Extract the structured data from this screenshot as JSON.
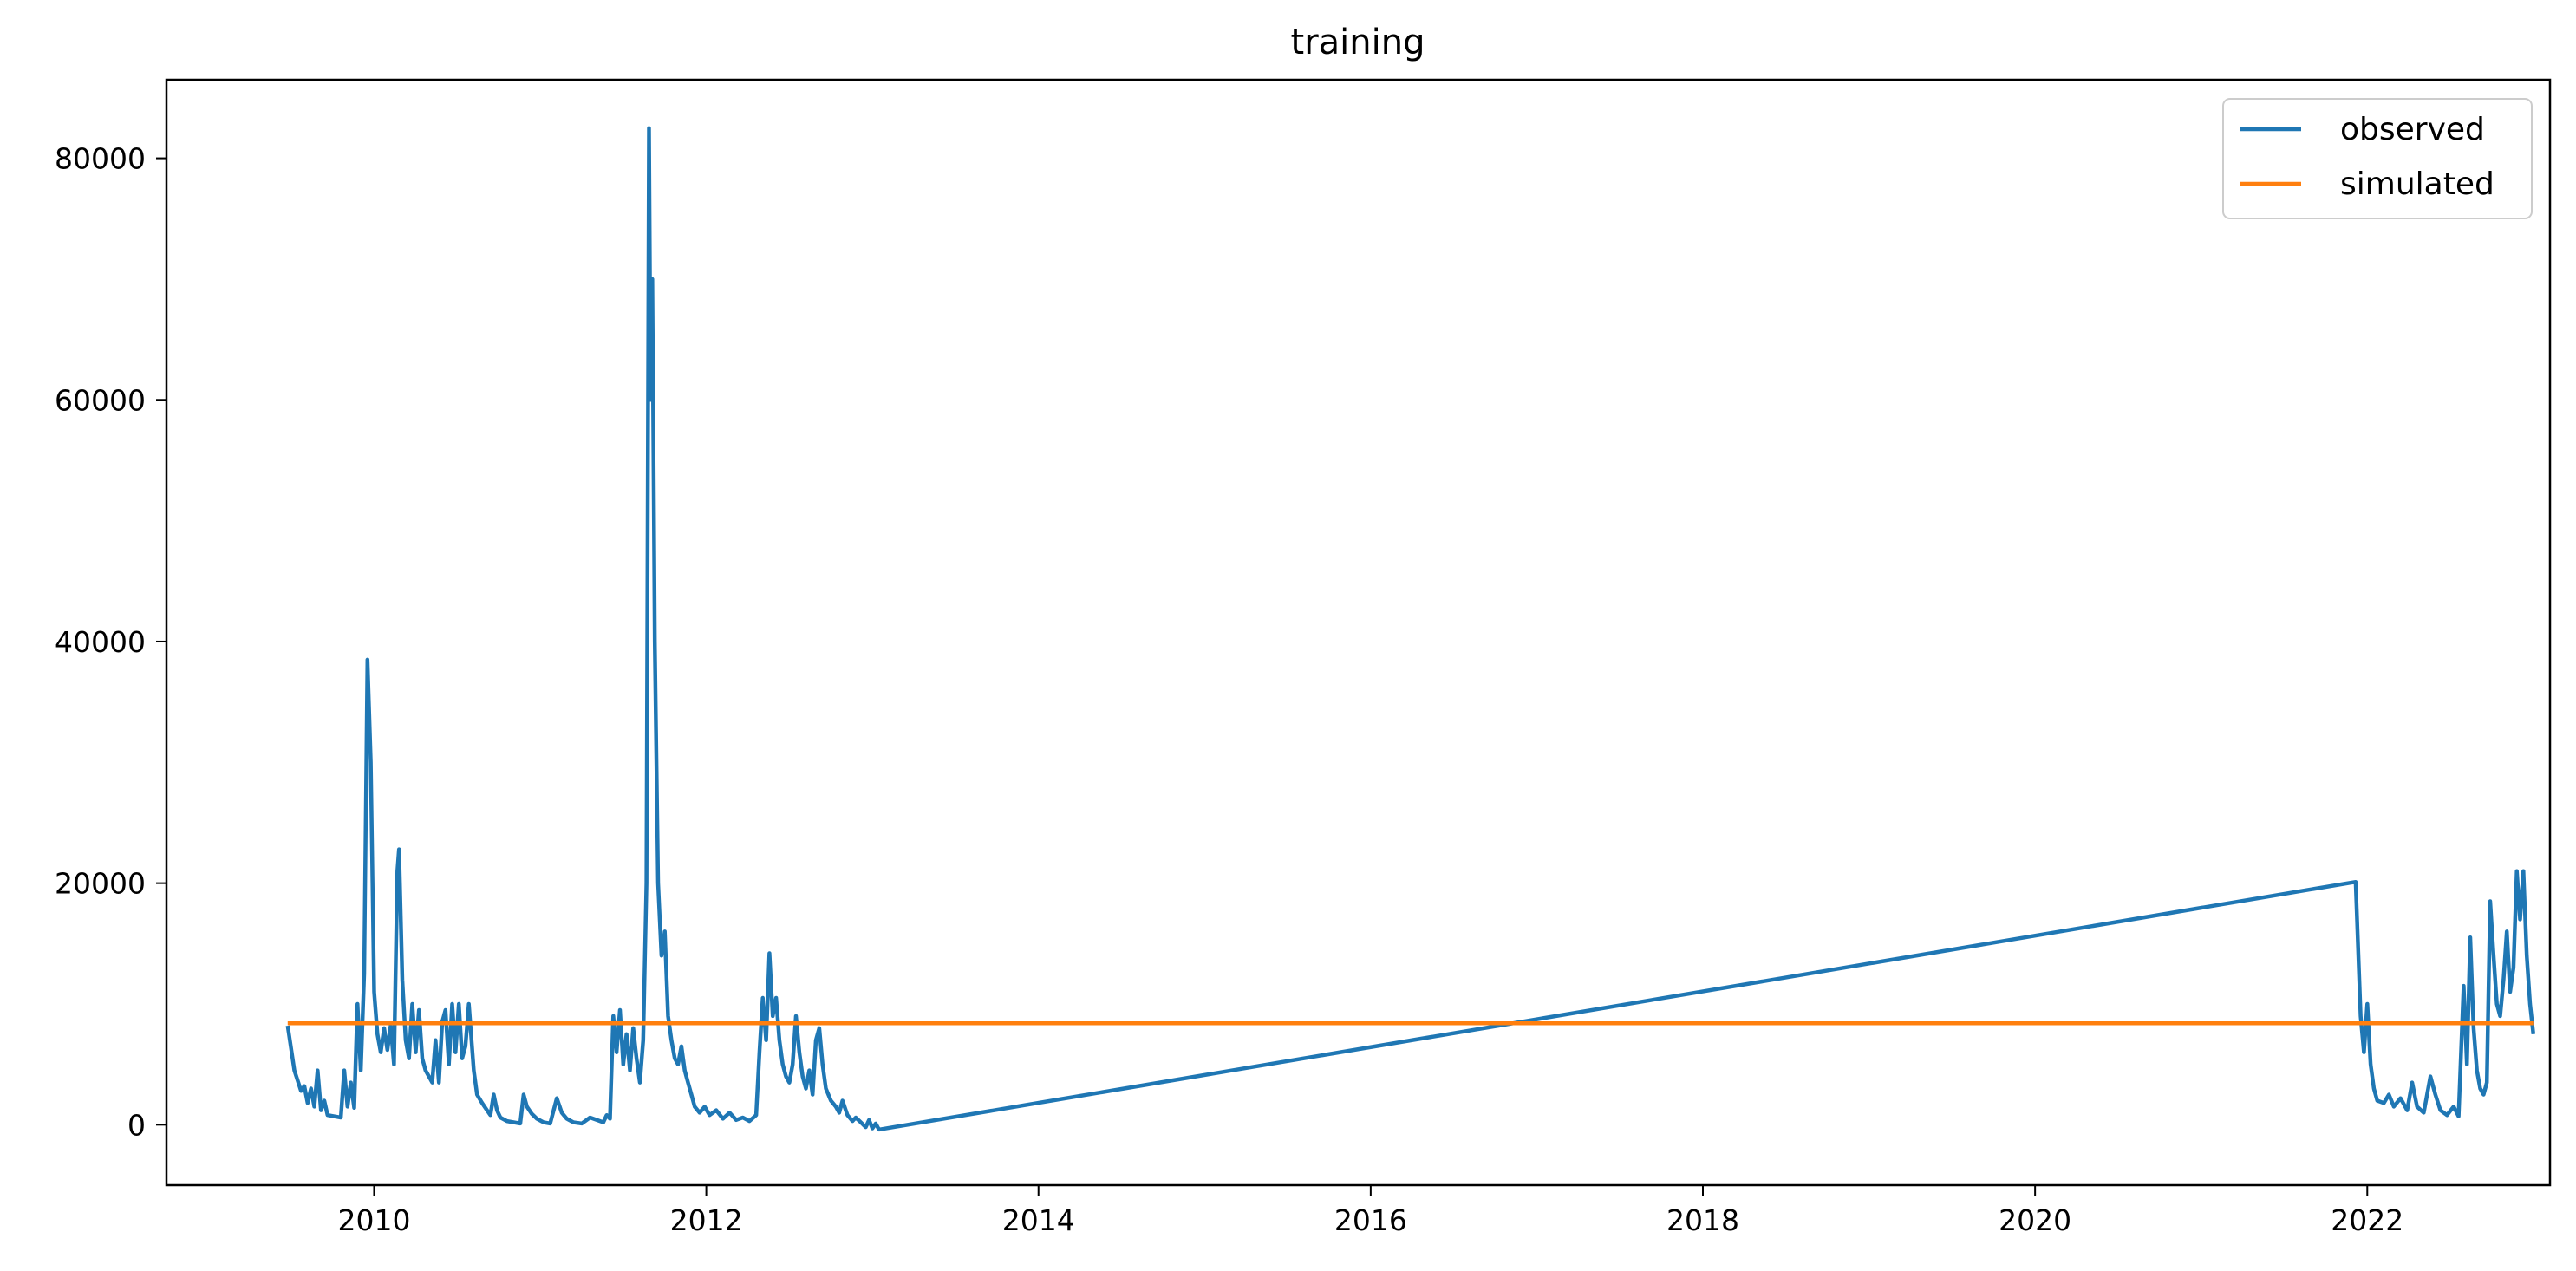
{
  "chart_data": {
    "type": "line",
    "title": "training",
    "xlabel": "",
    "ylabel": "",
    "xlim": [
      2008.75,
      2023.1
    ],
    "ylim": [
      -5000,
      86500
    ],
    "x_ticks": [
      "2010",
      "2012",
      "2014",
      "2016",
      "2018",
      "2020",
      "2022"
    ],
    "y_ticks": [
      "0",
      "20000",
      "40000",
      "60000",
      "80000"
    ],
    "grid": false,
    "legend_position": "top-right",
    "series": [
      {
        "name": "observed",
        "color": "#1f77b4",
        "points": [
          [
            2009.48,
            8200
          ],
          [
            2009.52,
            4500
          ],
          [
            2009.56,
            2800
          ],
          [
            2009.58,
            3200
          ],
          [
            2009.6,
            1800
          ],
          [
            2009.62,
            3000
          ],
          [
            2009.64,
            1500
          ],
          [
            2009.66,
            4500
          ],
          [
            2009.68,
            1200
          ],
          [
            2009.7,
            2000
          ],
          [
            2009.72,
            800
          ],
          [
            2009.76,
            700
          ],
          [
            2009.8,
            600
          ],
          [
            2009.82,
            4500
          ],
          [
            2009.84,
            1500
          ],
          [
            2009.86,
            3500
          ],
          [
            2009.88,
            1400
          ],
          [
            2009.9,
            10000
          ],
          [
            2009.92,
            4500
          ],
          [
            2009.94,
            12500
          ],
          [
            2009.96,
            38500
          ],
          [
            2009.98,
            30000
          ],
          [
            2010.0,
            11000
          ],
          [
            2010.02,
            7500
          ],
          [
            2010.04,
            6000
          ],
          [
            2010.06,
            8000
          ],
          [
            2010.08,
            6200
          ],
          [
            2010.1,
            8200
          ],
          [
            2010.12,
            5000
          ],
          [
            2010.14,
            21000
          ],
          [
            2010.15,
            22800
          ],
          [
            2010.17,
            12000
          ],
          [
            2010.19,
            7000
          ],
          [
            2010.21,
            5500
          ],
          [
            2010.23,
            10000
          ],
          [
            2010.25,
            6000
          ],
          [
            2010.27,
            9500
          ],
          [
            2010.29,
            5500
          ],
          [
            2010.31,
            4500
          ],
          [
            2010.33,
            4000
          ],
          [
            2010.35,
            3500
          ],
          [
            2010.37,
            7000
          ],
          [
            2010.39,
            3500
          ],
          [
            2010.41,
            8500
          ],
          [
            2010.43,
            9500
          ],
          [
            2010.45,
            5000
          ],
          [
            2010.47,
            10000
          ],
          [
            2010.49,
            6000
          ],
          [
            2010.51,
            10000
          ],
          [
            2010.53,
            5500
          ],
          [
            2010.55,
            6500
          ],
          [
            2010.57,
            10000
          ],
          [
            2010.6,
            4500
          ],
          [
            2010.62,
            2500
          ],
          [
            2010.65,
            1800
          ],
          [
            2010.68,
            1200
          ],
          [
            2010.7,
            800
          ],
          [
            2010.72,
            2500
          ],
          [
            2010.74,
            1200
          ],
          [
            2010.76,
            600
          ],
          [
            2010.8,
            300
          ],
          [
            2010.84,
            200
          ],
          [
            2010.88,
            100
          ],
          [
            2010.9,
            2500
          ],
          [
            2010.92,
            1500
          ],
          [
            2010.95,
            900
          ],
          [
            2010.98,
            500
          ],
          [
            2011.02,
            200
          ],
          [
            2011.06,
            100
          ],
          [
            2011.1,
            2200
          ],
          [
            2011.13,
            1000
          ],
          [
            2011.16,
            500
          ],
          [
            2011.2,
            200
          ],
          [
            2011.25,
            100
          ],
          [
            2011.3,
            600
          ],
          [
            2011.34,
            400
          ],
          [
            2011.38,
            200
          ],
          [
            2011.4,
            800
          ],
          [
            2011.42,
            500
          ],
          [
            2011.44,
            9000
          ],
          [
            2011.46,
            6000
          ],
          [
            2011.48,
            9500
          ],
          [
            2011.5,
            5000
          ],
          [
            2011.52,
            7500
          ],
          [
            2011.54,
            4500
          ],
          [
            2011.56,
            8000
          ],
          [
            2011.58,
            5500
          ],
          [
            2011.6,
            3500
          ],
          [
            2011.62,
            7000
          ],
          [
            2011.64,
            20000
          ],
          [
            2011.655,
            82500
          ],
          [
            2011.665,
            60000
          ],
          [
            2011.675,
            70000
          ],
          [
            2011.69,
            40000
          ],
          [
            2011.71,
            20000
          ],
          [
            2011.73,
            14000
          ],
          [
            2011.75,
            16000
          ],
          [
            2011.77,
            9000
          ],
          [
            2011.79,
            7000
          ],
          [
            2011.81,
            5500
          ],
          [
            2011.83,
            5000
          ],
          [
            2011.85,
            6500
          ],
          [
            2011.87,
            4500
          ],
          [
            2011.89,
            3500
          ],
          [
            2011.91,
            2500
          ],
          [
            2011.93,
            1500
          ],
          [
            2011.96,
            1000
          ],
          [
            2011.99,
            1500
          ],
          [
            2012.02,
            800
          ],
          [
            2012.06,
            1200
          ],
          [
            2012.1,
            500
          ],
          [
            2012.14,
            1000
          ],
          [
            2012.18,
            400
          ],
          [
            2012.22,
            600
          ],
          [
            2012.26,
            300
          ],
          [
            2012.3,
            800
          ],
          [
            2012.32,
            6000
          ],
          [
            2012.34,
            10500
          ],
          [
            2012.36,
            7000
          ],
          [
            2012.38,
            14200
          ],
          [
            2012.4,
            9000
          ],
          [
            2012.42,
            10500
          ],
          [
            2012.44,
            7000
          ],
          [
            2012.46,
            5000
          ],
          [
            2012.48,
            4000
          ],
          [
            2012.5,
            3500
          ],
          [
            2012.52,
            5000
          ],
          [
            2012.54,
            9000
          ],
          [
            2012.56,
            6000
          ],
          [
            2012.58,
            4000
          ],
          [
            2012.6,
            3000
          ],
          [
            2012.62,
            4500
          ],
          [
            2012.64,
            2500
          ],
          [
            2012.66,
            7000
          ],
          [
            2012.68,
            8000
          ],
          [
            2012.7,
            5000
          ],
          [
            2012.72,
            3000
          ],
          [
            2012.75,
            2000
          ],
          [
            2012.78,
            1500
          ],
          [
            2012.8,
            1000
          ],
          [
            2012.82,
            2000
          ],
          [
            2012.85,
            800
          ],
          [
            2012.88,
            300
          ],
          [
            2012.9,
            600
          ],
          [
            2012.93,
            200
          ],
          [
            2012.96,
            -200
          ],
          [
            2012.98,
            400
          ],
          [
            2013.0,
            -300
          ],
          [
            2013.02,
            100
          ],
          [
            2013.04,
            -400
          ],
          [
            2021.93,
            20100
          ],
          [
            2021.96,
            9000
          ],
          [
            2021.98,
            6000
          ],
          [
            2022.0,
            10000
          ],
          [
            2022.02,
            5000
          ],
          [
            2022.04,
            3000
          ],
          [
            2022.06,
            2000
          ],
          [
            2022.1,
            1800
          ],
          [
            2022.13,
            2500
          ],
          [
            2022.16,
            1500
          ],
          [
            2022.2,
            2200
          ],
          [
            2022.24,
            1200
          ],
          [
            2022.27,
            3500
          ],
          [
            2022.3,
            1500
          ],
          [
            2022.34,
            1000
          ],
          [
            2022.38,
            4000
          ],
          [
            2022.41,
            2500
          ],
          [
            2022.44,
            1200
          ],
          [
            2022.48,
            800
          ],
          [
            2022.52,
            1500
          ],
          [
            2022.55,
            700
          ],
          [
            2022.58,
            11500
          ],
          [
            2022.6,
            5000
          ],
          [
            2022.62,
            15500
          ],
          [
            2022.64,
            8000
          ],
          [
            2022.66,
            4500
          ],
          [
            2022.68,
            3000
          ],
          [
            2022.7,
            2500
          ],
          [
            2022.72,
            3500
          ],
          [
            2022.74,
            18500
          ],
          [
            2022.76,
            14000
          ],
          [
            2022.78,
            10000
          ],
          [
            2022.8,
            9000
          ],
          [
            2022.82,
            12000
          ],
          [
            2022.84,
            16000
          ],
          [
            2022.86,
            11000
          ],
          [
            2022.88,
            13000
          ],
          [
            2022.9,
            21000
          ],
          [
            2022.92,
            17000
          ],
          [
            2022.94,
            21000
          ],
          [
            2022.96,
            14000
          ],
          [
            2022.98,
            10000
          ],
          [
            2023.0,
            7500
          ]
        ]
      },
      {
        "name": "simulated",
        "color": "#ff7f0e",
        "points": [
          [
            2009.48,
            8400
          ],
          [
            2023.0,
            8400
          ]
        ]
      }
    ]
  }
}
